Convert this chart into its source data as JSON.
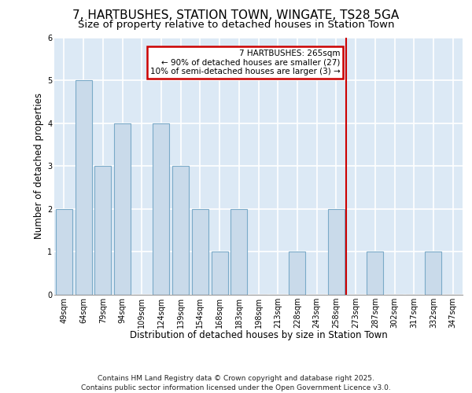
{
  "title": "7, HARTBUSHES, STATION TOWN, WINGATE, TS28 5GA",
  "subtitle": "Size of property relative to detached houses in Station Town",
  "xlabel": "Distribution of detached houses by size in Station Town",
  "ylabel": "Number of detached properties",
  "categories": [
    "49sqm",
    "64sqm",
    "79sqm",
    "94sqm",
    "109sqm",
    "124sqm",
    "139sqm",
    "154sqm",
    "168sqm",
    "183sqm",
    "198sqm",
    "213sqm",
    "228sqm",
    "243sqm",
    "258sqm",
    "273sqm",
    "287sqm",
    "302sqm",
    "317sqm",
    "332sqm",
    "347sqm"
  ],
  "values": [
    2,
    5,
    3,
    4,
    0,
    4,
    3,
    2,
    1,
    2,
    0,
    0,
    1,
    0,
    2,
    0,
    1,
    0,
    0,
    1,
    0
  ],
  "bar_color": "#c9daea",
  "bar_edge_color": "#7aaac8",
  "vline_x_index": 14.5,
  "vline_color": "#cc0000",
  "annotation_line1": "7 HARTBUSHES: 265sqm",
  "annotation_line2": "← 90% of detached houses are smaller (27)",
  "annotation_line3": "10% of semi-detached houses are larger (3) →",
  "annotation_box_color": "#cc0000",
  "ylim": [
    0,
    6
  ],
  "yticks": [
    0,
    1,
    2,
    3,
    4,
    5,
    6
  ],
  "footer": "Contains HM Land Registry data © Crown copyright and database right 2025.\nContains public sector information licensed under the Open Government Licence v3.0.",
  "background_color": "#dce9f5",
  "fig_background": "#ffffff",
  "grid_color": "#ffffff",
  "title_fontsize": 11,
  "subtitle_fontsize": 9.5,
  "label_fontsize": 8.5,
  "tick_fontsize": 7,
  "footer_fontsize": 6.5,
  "annotation_fontsize": 7.5
}
